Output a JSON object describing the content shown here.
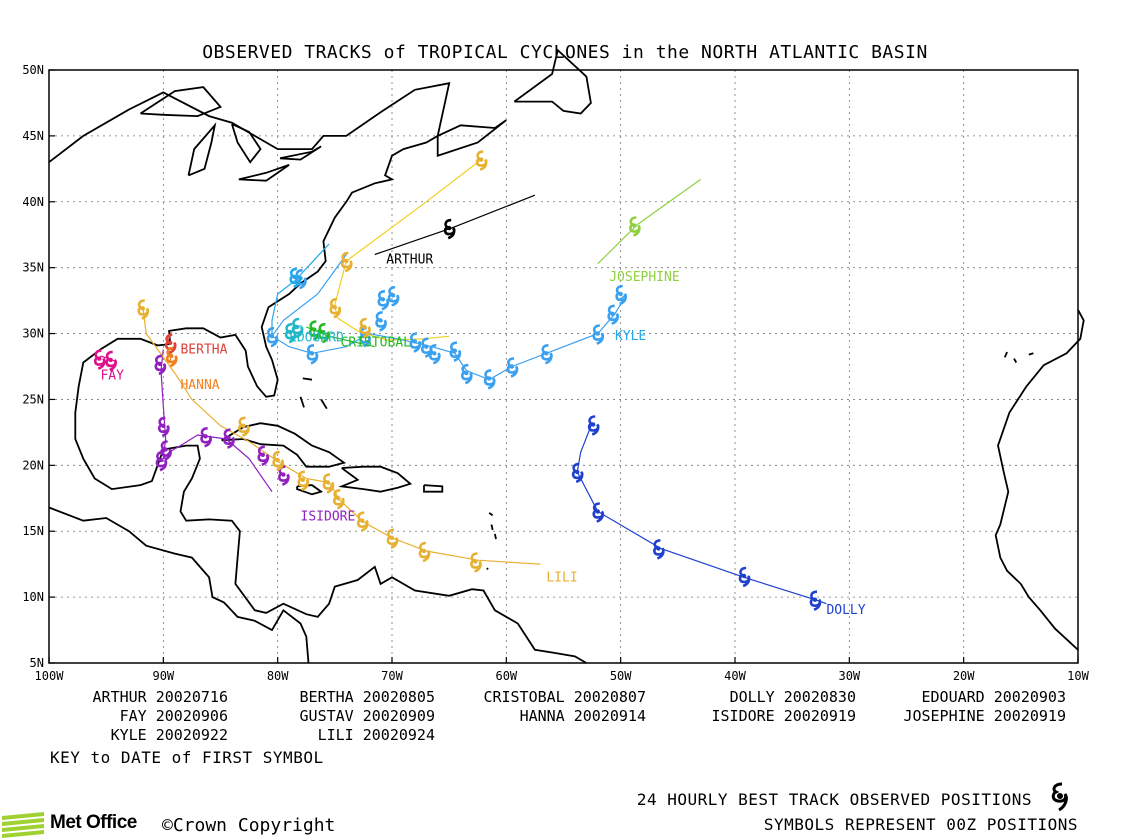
{
  "chart_data": {
    "type": "scatter",
    "title": "OBSERVED TRACKS of TROPICAL CYCLONES in the NORTH ATLANTIC BASIN",
    "x_range": [
      -100,
      -10
    ],
    "y_range": [
      5,
      50
    ],
    "x_ticks": [
      -100,
      -90,
      -80,
      -70,
      -60,
      -50,
      -40,
      -30,
      -20,
      -10
    ],
    "x_tick_labels": [
      "100W",
      "90W",
      "80W",
      "70W",
      "60W",
      "50W",
      "40W",
      "30W",
      "20W",
      "10W"
    ],
    "y_ticks": [
      5,
      10,
      15,
      20,
      25,
      30,
      35,
      40,
      45,
      50
    ],
    "y_tick_labels": [
      "5N",
      "10N",
      "15N",
      "20N",
      "25N",
      "30N",
      "35N",
      "40N",
      "45N",
      "50N"
    ],
    "grid": true,
    "x_unit": "degrees longitude",
    "y_unit": "degrees latitude",
    "series": [
      {
        "name": "ARTHUR",
        "color": "#000000",
        "track": [
          [
            -71.5,
            36.0
          ],
          [
            -64.8,
            38.0
          ],
          [
            -57.5,
            40.5
          ]
        ],
        "symbols": [
          [
            -65.0,
            38.0
          ]
        ],
        "label_at": [
          -70.5,
          35.3
        ]
      },
      {
        "name": "BERTHA",
        "color": "#e0403a",
        "track": [
          [
            -89.3,
            30.1
          ],
          [
            -89.6,
            29.4
          ]
        ],
        "symbols": [
          [
            -89.4,
            29.3
          ]
        ],
        "label_at": [
          -88.5,
          28.5
        ]
      },
      {
        "name": "CRISTOBAL",
        "color": "#22bb22",
        "track": [
          [
            -77.5,
            30.5
          ],
          [
            -75.5,
            29.8
          ],
          [
            -71.5,
            29.0
          ]
        ],
        "symbols": [
          [
            -76.8,
            30.3
          ],
          [
            -76.0,
            30.1
          ]
        ],
        "label_at": [
          -74.5,
          29.0
        ]
      },
      {
        "name": "DOLLY",
        "color": "#2040d0",
        "track": [
          [
            -52.5,
            23.2
          ],
          [
            -53.5,
            21.0
          ],
          [
            -53.8,
            19.5
          ],
          [
            -52.0,
            16.5
          ],
          [
            -46.5,
            13.7
          ],
          [
            -39.2,
            11.5
          ],
          [
            -33.0,
            9.8
          ],
          [
            -32.0,
            9.5
          ]
        ],
        "symbols": [
          [
            -52.4,
            23.1
          ],
          [
            -53.8,
            19.5
          ],
          [
            -52.0,
            16.5
          ],
          [
            -46.7,
            13.7
          ],
          [
            -39.2,
            11.6
          ],
          [
            -33.0,
            9.8
          ]
        ],
        "label_at": [
          -32.0,
          8.7
        ]
      },
      {
        "name": "EDOUARD",
        "color": "#20b8c8",
        "track": [
          [
            -78.8,
            30.1
          ],
          [
            -78.3,
            30.5
          ],
          [
            -77.9,
            30.6
          ]
        ],
        "symbols": [
          [
            -78.9,
            30.1
          ],
          [
            -78.3,
            30.5
          ]
        ],
        "label_at": [
          -79.0,
          29.4
        ]
      },
      {
        "name": "FAY",
        "color": "#e0108c",
        "track": [
          [
            -95.5,
            28.3
          ],
          [
            -94.8,
            28.1
          ],
          [
            -94.2,
            27.9
          ]
        ],
        "symbols": [
          [
            -95.6,
            28.1
          ],
          [
            -94.6,
            28.0
          ]
        ],
        "label_at": [
          -95.5,
          26.5
        ]
      },
      {
        "name": "GUSTAV",
        "color": "#3aa0f0",
        "track": [
          [
            -74.0,
            36.0
          ],
          [
            -76.5,
            33.0
          ],
          [
            -79.5,
            31.0
          ],
          [
            -80.5,
            29.8
          ],
          [
            -79.0,
            29.0
          ],
          [
            -77.0,
            28.5
          ],
          [
            -74.0,
            29.0
          ],
          [
            -72.0,
            30.0
          ],
          [
            -69.0,
            29.5
          ],
          [
            -66.5,
            29.0
          ],
          [
            -64.5,
            28.5
          ],
          [
            -63.5,
            27.2
          ],
          [
            -61.5,
            26.5
          ],
          [
            -59.5,
            27.5
          ],
          [
            -56.5,
            28.5
          ],
          [
            -52.0,
            30.0
          ],
          [
            -50.5,
            31.5
          ],
          [
            -49.5,
            33.0
          ],
          [
            -50.2,
            32.5
          ]
        ],
        "symbols": [
          [
            -78.0,
            34.2
          ],
          [
            -80.5,
            29.8
          ],
          [
            -77.0,
            28.5
          ],
          [
            -72.4,
            29.8
          ],
          [
            -71.0,
            31.0
          ],
          [
            -70.8,
            32.6
          ],
          [
            -69.9,
            32.9
          ],
          [
            -68.0,
            29.4
          ],
          [
            -67.0,
            29.0
          ],
          [
            -66.3,
            28.5
          ],
          [
            -64.5,
            28.7
          ],
          [
            -63.5,
            27.0
          ],
          [
            -61.5,
            26.6
          ],
          [
            -59.5,
            27.5
          ],
          [
            -56.5,
            28.5
          ],
          [
            -52.0,
            30.0
          ],
          [
            -50.7,
            31.5
          ],
          [
            -50.0,
            33.0
          ]
        ],
        "label_at": null
      },
      {
        "name": "HANNA",
        "color": "#f08020",
        "track": [
          [
            -89.3,
            28.5
          ],
          [
            -89.4,
            27.9
          ]
        ],
        "symbols": [
          [
            -89.3,
            28.3
          ]
        ],
        "label_at": [
          -88.5,
          25.8
        ]
      },
      {
        "name": "ISIDORE",
        "color": "#9020c0",
        "track": [
          [
            -80.5,
            18.0
          ],
          [
            -82.5,
            20.5
          ],
          [
            -84.5,
            22.0
          ],
          [
            -87.0,
            22.3
          ],
          [
            -88.5,
            21.5
          ],
          [
            -89.5,
            21.0
          ],
          [
            -90.0,
            20.5
          ],
          [
            -89.8,
            22.0
          ],
          [
            -90.0,
            24.5
          ],
          [
            -90.2,
            27.2
          ],
          [
            -90.0,
            28.8
          ]
        ],
        "symbols": [
          [
            -79.5,
            19.3
          ],
          [
            -81.3,
            20.8
          ],
          [
            -84.3,
            22.1
          ],
          [
            -86.3,
            22.2
          ],
          [
            -89.8,
            21.2
          ],
          [
            -90.2,
            20.4
          ],
          [
            -90.0,
            23.0
          ],
          [
            -90.3,
            27.7
          ]
        ],
        "label_at": [
          -78.0,
          15.8
        ]
      },
      {
        "name": "JOSEPHINE",
        "color": "#90d040",
        "track": [
          [
            -52.0,
            35.3
          ],
          [
            -48.5,
            38.3
          ],
          [
            -43.0,
            41.7
          ]
        ],
        "symbols": [
          [
            -48.8,
            38.2
          ]
        ],
        "label_at": [
          -51.0,
          34.0
        ]
      },
      {
        "name": "KYLE",
        "color": "#20a8e8",
        "track": [
          [
            -75.5,
            36.8
          ],
          [
            -78.5,
            34.0
          ],
          [
            -80.0,
            33.0
          ],
          [
            -80.5,
            31.0
          ],
          [
            -80.5,
            29.8
          ]
        ],
        "symbols": [
          [
            -78.5,
            34.3
          ]
        ],
        "label_at": [
          -50.5,
          29.5
        ]
      },
      {
        "name": "LILI",
        "color": "#e8b030",
        "track": [
          [
            -57.0,
            12.5
          ],
          [
            -62.5,
            12.8
          ],
          [
            -67.0,
            13.5
          ],
          [
            -70.0,
            14.5
          ],
          [
            -72.5,
            15.7
          ],
          [
            -74.5,
            17.3
          ],
          [
            -75.5,
            18.7
          ],
          [
            -77.5,
            19.0
          ],
          [
            -80.0,
            20.3
          ],
          [
            -82.5,
            21.8
          ],
          [
            -85.0,
            23.0
          ],
          [
            -87.5,
            25.0
          ],
          [
            -89.0,
            27.0
          ],
          [
            -90.5,
            28.8
          ],
          [
            -91.5,
            30.0
          ],
          [
            -91.8,
            32.0
          ]
        ],
        "symbols": [
          [
            -62.7,
            12.7
          ],
          [
            -67.2,
            13.5
          ],
          [
            -70.0,
            14.5
          ],
          [
            -72.6,
            15.8
          ],
          [
            -74.7,
            17.5
          ],
          [
            -75.6,
            18.7
          ],
          [
            -77.8,
            18.9
          ],
          [
            -80.0,
            20.4
          ],
          [
            -83.0,
            23.0
          ],
          [
            -91.8,
            31.9
          ],
          [
            -74.0,
            35.5
          ],
          [
            -75.0,
            32.0
          ],
          [
            -72.4,
            30.5
          ],
          [
            -62.2,
            43.2
          ]
        ],
        "label_at": [
          -56.5,
          11.2
        ]
      }
    ],
    "extra_track": {
      "color": "#f0d020",
      "points": [
        [
          -62.2,
          43.2
        ],
        [
          -67.0,
          40.0
        ],
        [
          -74.0,
          35.5
        ],
        [
          -75.0,
          32.2
        ],
        [
          -74.8,
          31.2
        ],
        [
          -73.0,
          30.2
        ],
        [
          -70.5,
          29.5
        ],
        [
          -67.2,
          29.6
        ],
        [
          -65.0,
          29.8
        ]
      ]
    },
    "key": [
      [
        "ARTHUR 20020716",
        "BERTHA 20020805",
        "CRISTOBAL 20020807",
        "DOLLY 20020830",
        "EDOUARD 20020903"
      ],
      [
        "FAY 20020906",
        "GUSTAV 20020909",
        "HANNA 20020914",
        "ISIDORE 20020919",
        "JOSEPHINE 20020919"
      ],
      [
        "KYLE 20020922",
        "LILI 20020924"
      ]
    ],
    "key_note": "KEY to DATE of FIRST SYMBOL"
  },
  "legend": {
    "line1": "24 HOURLY BEST TRACK OBSERVED POSITIONS",
    "line2": "SYMBOLS REPRESENT 00Z POSITIONS",
    "icon": "hurricane-symbol-icon"
  },
  "footer": {
    "brand": "Met Office",
    "copyright": "©Crown Copyright"
  }
}
